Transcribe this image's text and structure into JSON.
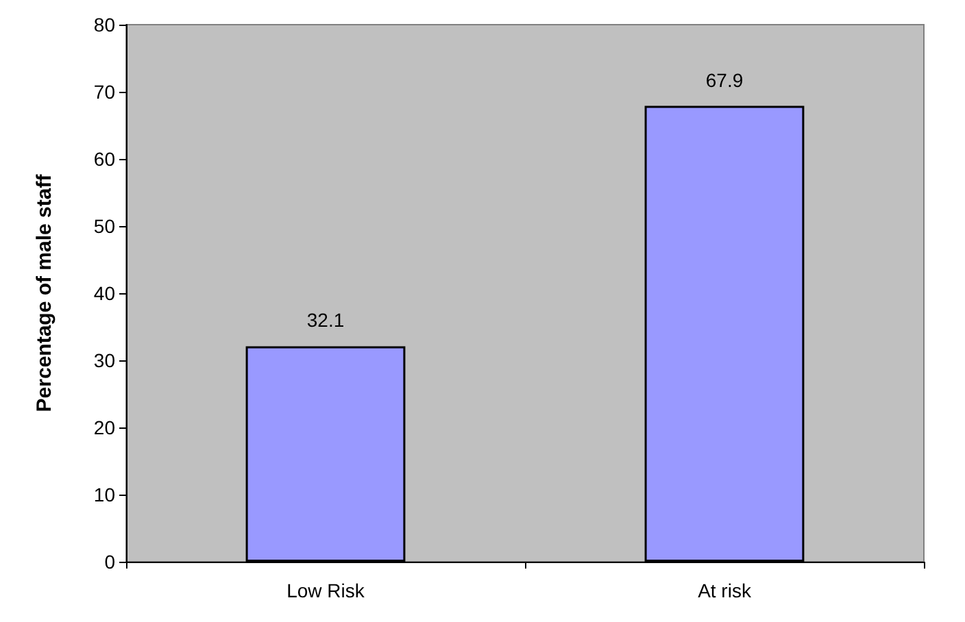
{
  "chart_data": {
    "type": "bar",
    "ylabel": "Percentage of male staff",
    "categories": [
      "Low Risk",
      "At risk"
    ],
    "values": [
      32.1,
      67.9
    ],
    "color": "#9999ff",
    "ylim": [
      0,
      80
    ],
    "yticks": [
      0,
      10,
      20,
      30,
      40,
      50,
      60,
      70,
      80
    ],
    "data_labels": true,
    "grid": false
  }
}
